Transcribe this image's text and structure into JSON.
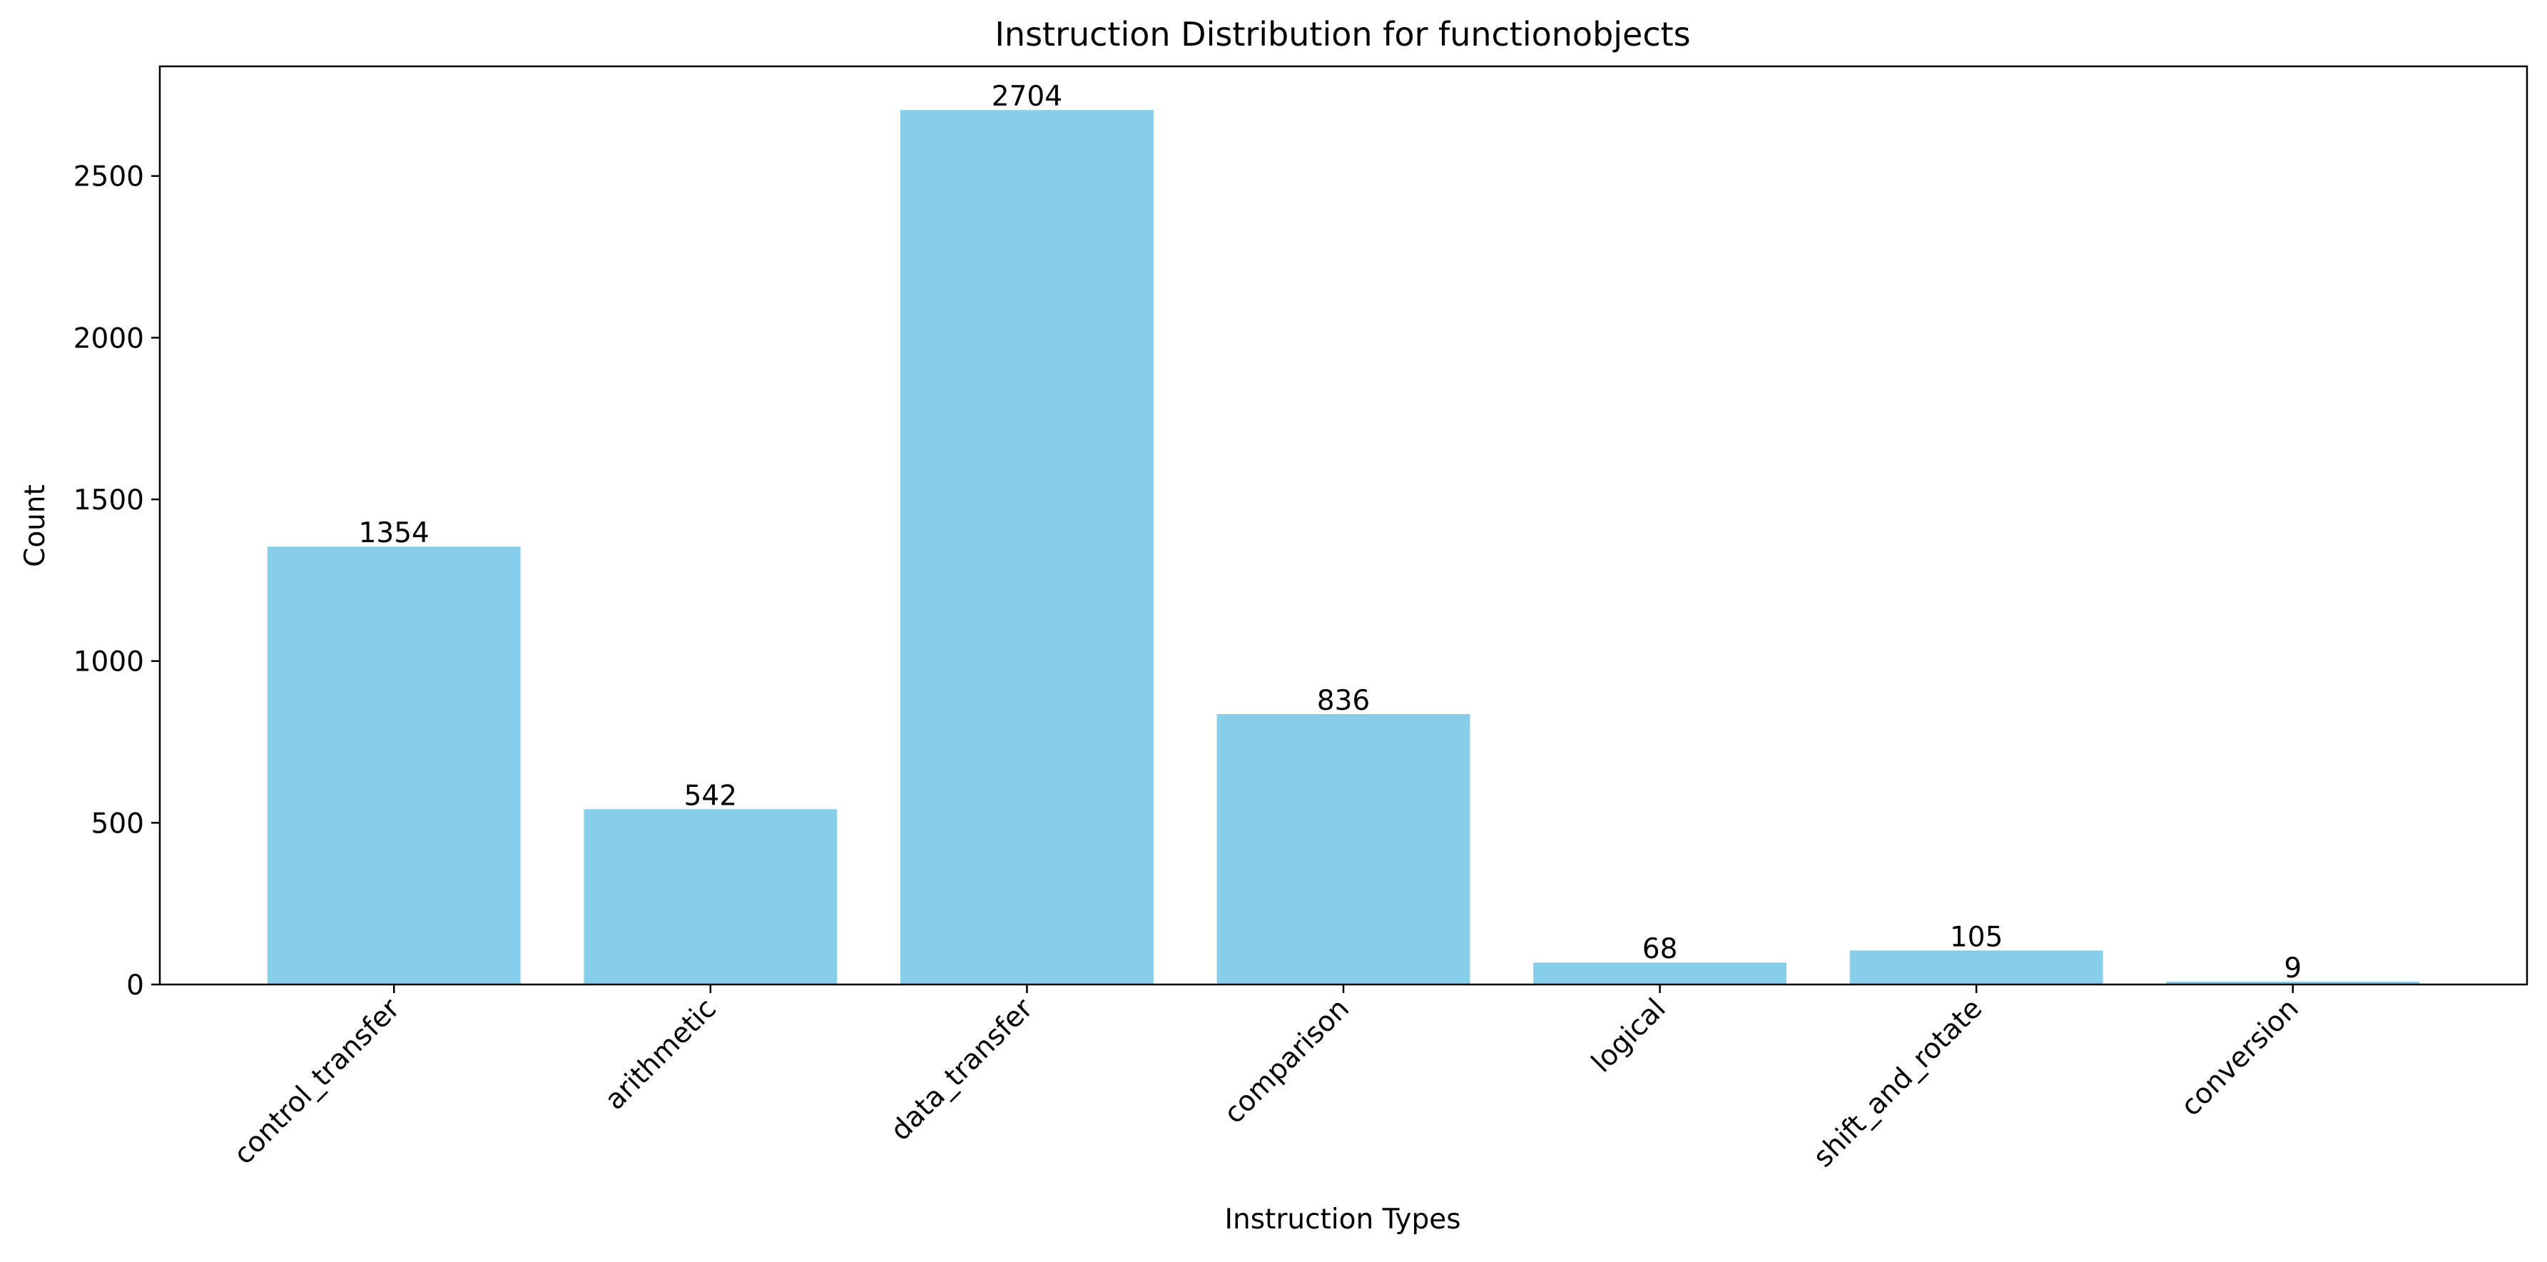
{
  "colors": {
    "bar": "#87ceeb",
    "axis": "#000000",
    "background": "#ffffff"
  },
  "chart_data": {
    "type": "bar",
    "title": "Instruction Distribution for functionobjects",
    "xlabel": "Instruction Types",
    "ylabel": "Count",
    "categories": [
      "control_transfer",
      "arithmetic",
      "data_transfer",
      "comparison",
      "logical",
      "shift_and_rotate",
      "conversion"
    ],
    "values": [
      1354,
      542,
      2704,
      836,
      68,
      105,
      9
    ],
    "data_labels": [
      "1354",
      "542",
      "2704",
      "836",
      "68",
      "105",
      "9"
    ],
    "ylim": [
      0,
      2839
    ],
    "yticks": [
      0,
      500,
      1000,
      1500,
      2000,
      2500
    ],
    "ytick_labels": [
      "0",
      "500",
      "1000",
      "1500",
      "2000",
      "2500"
    ],
    "grid": false,
    "legend": "none"
  }
}
